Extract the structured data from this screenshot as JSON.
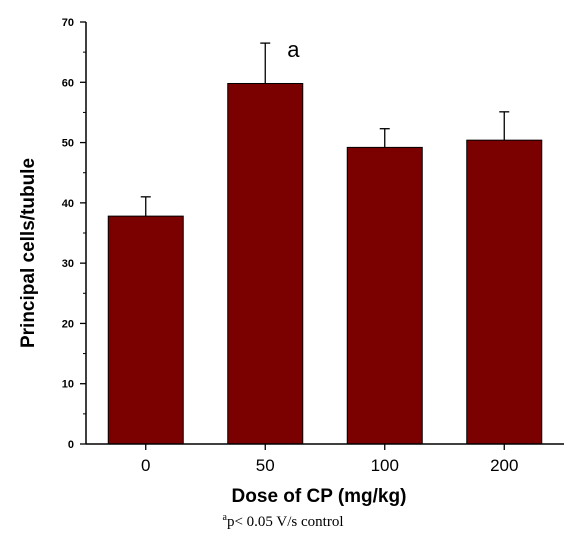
{
  "chart_data": {
    "type": "bar",
    "categories": [
      "0",
      "50",
      "100",
      "200"
    ],
    "values": [
      37.8,
      59.8,
      49.2,
      50.4
    ],
    "errors": [
      3.2,
      6.7,
      3.1,
      4.7
    ],
    "annotations": [
      {
        "category": "50",
        "text": "a"
      }
    ],
    "xlabel": "Dose of CP (mg/kg)",
    "ylabel": "Principal cells/tubule",
    "ylim": [
      0,
      70
    ],
    "yticks": [
      "0",
      "10",
      "20",
      "30",
      "40",
      "50",
      "60",
      "70"
    ],
    "bar_color": "#7b0000",
    "grid": false
  },
  "footnote": {
    "superscript": "a",
    "text": "p< 0.05 V/s control"
  }
}
